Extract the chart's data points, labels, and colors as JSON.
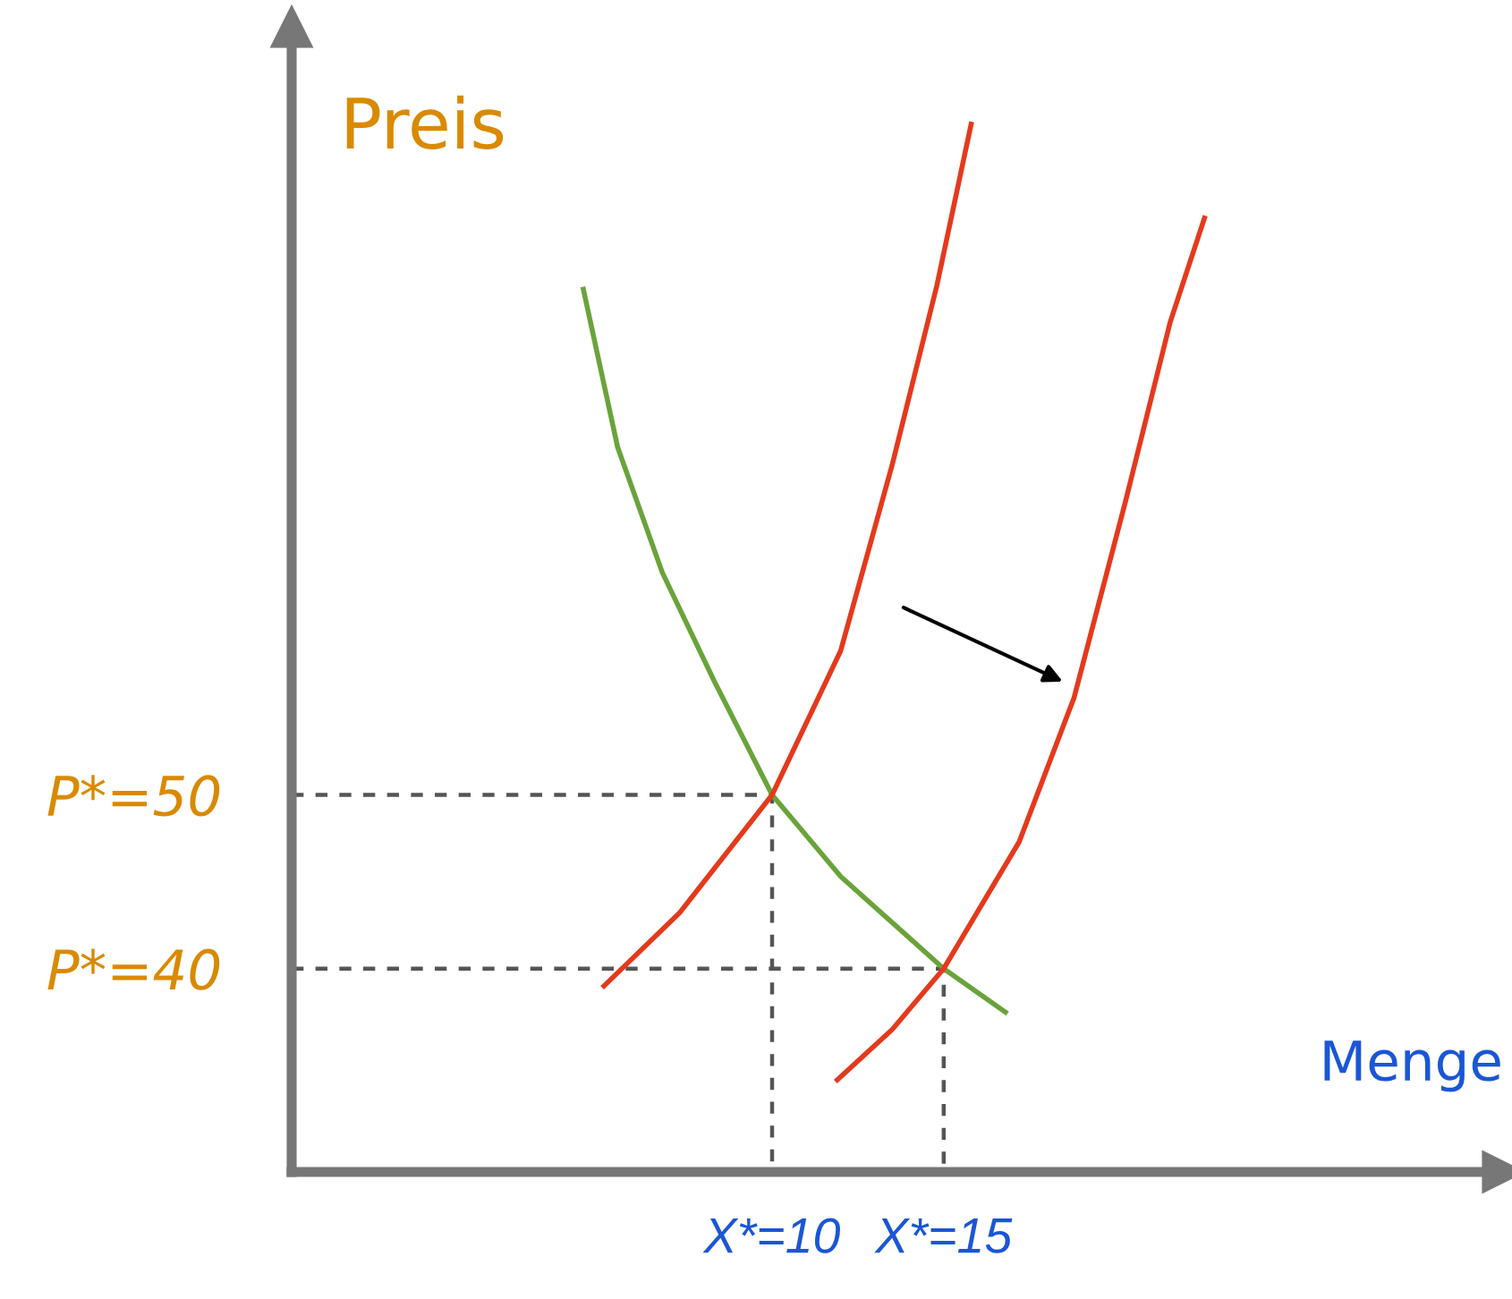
{
  "chart_data": {
    "type": "line",
    "xlabel": "Menge",
    "ylabel": "Preis",
    "xlim": [
      -4,
      31.3
    ],
    "ylim": [
      28.3,
      94.2
    ],
    "xticks": [
      {
        "value": 10,
        "label": "X*=10"
      },
      {
        "value": 15,
        "label": "X*=15"
      }
    ],
    "yticks": [
      {
        "value": 40,
        "label": "P*=40"
      },
      {
        "value": 50,
        "label": "P*=50"
      }
    ],
    "series": [
      {
        "color": "#6aa33a",
        "x": [
          4.5,
          5.5,
          6.8,
          8.3,
          10,
          12,
          15,
          16.8
        ],
        "values": [
          79.1,
          70,
          62.8,
          56.6,
          50,
          45.3,
          40,
          37.5
        ]
      },
      {
        "color": "#e5391c",
        "x": [
          5.1,
          7.3,
          10,
          12,
          13.5,
          14.8,
          15.8
        ],
        "values": [
          39,
          43.2,
          50,
          58.3,
          69,
          79.3,
          88.6
        ]
      },
      {
        "color": "#e5391c",
        "x": [
          11.9,
          13.5,
          15,
          17.2,
          18.8,
          20.3,
          21.6,
          22.6
        ],
        "values": [
          33.6,
          36.5,
          40,
          47.3,
          55.6,
          66.9,
          77.2,
          83.2
        ]
      },
      {
        "color": "#555555",
        "line_style": "dashed",
        "x": [
          -4,
          10,
          10
        ],
        "values": [
          50,
          50,
          28.3
        ]
      },
      {
        "color": "#555555",
        "line_style": "dashed",
        "x": [
          -4,
          15,
          15
        ],
        "values": [
          40,
          40,
          28.3
        ]
      }
    ]
  }
}
